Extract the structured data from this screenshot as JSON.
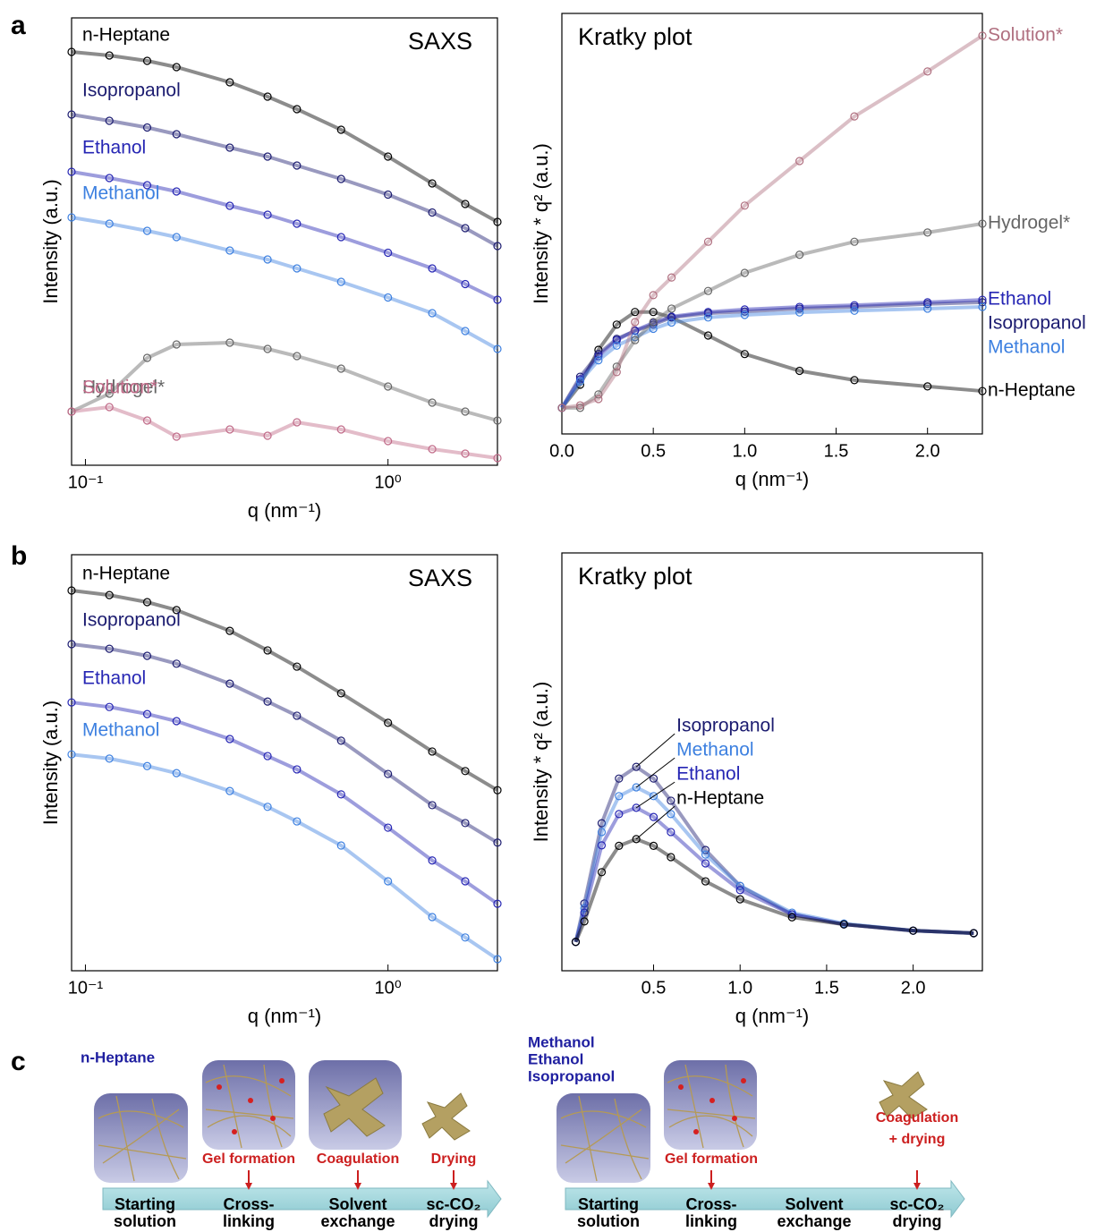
{
  "panels": [
    "a",
    "b",
    "c"
  ],
  "chart_data": [
    {
      "type": "scatter",
      "title": "SAXS",
      "x_label": "q (nm⁻¹)",
      "y_label": "Intensity (a.u.)",
      "xscale": "log",
      "x": [
        0.09,
        0.12,
        0.16,
        0.2,
        0.3,
        0.4,
        0.5,
        0.7,
        1.0,
        1.4,
        1.8,
        2.3
      ],
      "xlim": [
        0.09,
        2.3
      ],
      "xticks": [
        {
          "value": 0.1,
          "label": "10⁻¹"
        },
        {
          "value": 1,
          "label": "10⁰"
        }
      ],
      "ylim": [
        0,
        100
      ],
      "series": [
        {
          "name": "n-Heptane",
          "color": "#000000",
          "values": [
            92.4,
            91.6,
            90.4,
            89,
            85.6,
            82.4,
            79.6,
            75,
            69,
            63,
            58.4,
            54.4
          ]
        },
        {
          "name": "Isopropanol",
          "color": "#1c1c70",
          "values": [
            78.4,
            77,
            75.5,
            74,
            71,
            69,
            67,
            64,
            60.5,
            56.5,
            53,
            49
          ]
        },
        {
          "name": "Ethanol",
          "color": "#2626b4",
          "values": [
            65.6,
            64.2,
            62.6,
            61.2,
            58,
            56,
            54,
            51,
            47.5,
            44,
            40.5,
            37
          ]
        },
        {
          "name": "Methanol",
          "color": "#3d80e0",
          "values": [
            55.4,
            54,
            52.4,
            51,
            48,
            46,
            44,
            41,
            37.5,
            34,
            30,
            26
          ]
        },
        {
          "name": "Hydrogel*",
          "color": "#666666",
          "values": [
            12,
            16,
            24,
            27,
            27.4,
            26,
            24.4,
            21.6,
            17.6,
            14,
            12,
            10
          ]
        },
        {
          "name": "Solution*",
          "color": "#c06a88",
          "values": [
            12,
            13,
            10,
            6.4,
            8,
            6.6,
            9.6,
            8,
            5.4,
            3.6,
            2.6,
            1.6
          ]
        }
      ]
    },
    {
      "type": "scatter",
      "title": "Kratky plot",
      "x_label": "q (nm⁻¹)",
      "y_label": "Intensity * q² (a.u.)",
      "xscale": "linear",
      "x": [
        0,
        0.1,
        0.2,
        0.3,
        0.4,
        0.5,
        0.6,
        0.8,
        1.0,
        1.3,
        1.6,
        2.0,
        2.3
      ],
      "xlim": [
        0,
        2.3
      ],
      "xticks": [
        {
          "value": 0,
          "label": "0.0"
        },
        0.5,
        {
          "value": 1,
          "label": "1.0"
        },
        1.5,
        {
          "value": 2,
          "label": "2.0"
        }
      ],
      "ylim": [
        0,
        100
      ],
      "series": [
        {
          "name": "n-Heptane",
          "color": "#000000",
          "values": [
            6.2,
            11.7,
            20,
            26,
            29,
            29,
            27.7,
            23.4,
            19,
            15,
            12.8,
            11.3,
            10.2
          ]
        },
        {
          "name": "Isopropanol",
          "color": "#1c1c70",
          "values": [
            6.2,
            13.6,
            19,
            22.6,
            24.5,
            26,
            27.7,
            28.7,
            29.1,
            29.8,
            30.2,
            30.9,
            31.3
          ]
        },
        {
          "name": "Ethanol",
          "color": "#2626b4",
          "values": [
            6.2,
            13,
            18.5,
            22.3,
            24.6,
            26.4,
            27.9,
            29,
            29.6,
            30.2,
            30.6,
            31.3,
            31.9
          ]
        },
        {
          "name": "Methanol",
          "color": "#3d80e0",
          "values": [
            6.2,
            12.5,
            17.5,
            21,
            23,
            25,
            26.5,
            27.7,
            28.3,
            28.9,
            29.3,
            29.8,
            30.2
          ]
        },
        {
          "name": "Hydrogel*",
          "color": "#666666",
          "values": [
            6.2,
            6.2,
            9.4,
            16,
            22.3,
            26.6,
            29.8,
            34,
            38.3,
            42.6,
            45.7,
            47.9,
            50
          ]
        },
        {
          "name": "Solution*",
          "color": "#b07080",
          "values": [
            6.2,
            6.8,
            8.3,
            14.7,
            26.6,
            33,
            37.2,
            45.7,
            54.3,
            64.9,
            75.5,
            86.2,
            94.7
          ]
        }
      ]
    },
    {
      "type": "scatter",
      "title": "SAXS",
      "x_label": "q (nm⁻¹)",
      "y_label": "Intensity (a.u.)",
      "xscale": "log",
      "x": [
        0.09,
        0.12,
        0.16,
        0.2,
        0.3,
        0.4,
        0.5,
        0.7,
        1.0,
        1.4,
        1.8,
        2.3
      ],
      "xlim": [
        0.09,
        2.3
      ],
      "xticks": [
        {
          "value": 0.1,
          "label": "10⁻¹"
        },
        {
          "value": 1,
          "label": "10⁰"
        }
      ],
      "ylim": [
        0,
        100
      ],
      "series": [
        {
          "name": "n-Heptane",
          "color": "#000000",
          "values": [
            91.4,
            90.3,
            88.6,
            86.7,
            81.7,
            77,
            73.1,
            66.7,
            59.6,
            52.7,
            48,
            43.4
          ]
        },
        {
          "name": "Isopropanol",
          "color": "#1c1c70",
          "values": [
            78.5,
            77.4,
            75.7,
            73.8,
            69,
            64.7,
            61.3,
            55.3,
            47.3,
            39.8,
            35.5,
            30.8
          ]
        },
        {
          "name": "Ethanol",
          "color": "#2626b4",
          "values": [
            64.5,
            63.4,
            61.7,
            60,
            55.7,
            51.6,
            48.4,
            42.4,
            34.4,
            26.5,
            21.5,
            16.1
          ]
        },
        {
          "name": "Methanol",
          "color": "#3d80e0",
          "values": [
            52,
            51,
            49.2,
            47.5,
            43.2,
            39.4,
            35.9,
            30.1,
            21.5,
            12.9,
            8,
            2.8
          ]
        }
      ]
    },
    {
      "type": "scatter",
      "title": "Kratky plot",
      "x_label": "q (nm⁻¹)",
      "y_label": "Intensity * q² (a.u.)",
      "xscale": "linear",
      "x": [
        0.05,
        0.1,
        0.2,
        0.3,
        0.4,
        0.5,
        0.6,
        0.8,
        1.0,
        1.3,
        1.6,
        2.0,
        2.35
      ],
      "xlim": [
        -0.03,
        2.4
      ],
      "xticks": [
        0.5,
        {
          "value": 1,
          "label": "1.0"
        },
        1.5,
        {
          "value": 2,
          "label": "2.0"
        }
      ],
      "ylim": [
        0,
        100
      ],
      "series": [
        {
          "name": "Isopropanol",
          "color": "#1c1c70",
          "values": [
            6.9,
            16.1,
            35.3,
            46,
            48.8,
            46,
            40.7,
            28.9,
            20.3,
            13.5,
            11.1,
            9.6,
            9
          ]
        },
        {
          "name": "Methanol",
          "color": "#3d80e0",
          "values": [
            6.9,
            15,
            33.2,
            41.8,
            43.9,
            41.8,
            37.5,
            27.8,
            20.3,
            13.9,
            11.3,
            9.6,
            9
          ]
        },
        {
          "name": "Ethanol",
          "color": "#2626b4",
          "values": [
            6.9,
            13.9,
            30,
            37.5,
            39,
            36.8,
            33.2,
            25.7,
            19.3,
            13.5,
            11.1,
            9.6,
            9
          ]
        },
        {
          "name": "n-Heptane",
          "color": "#000000",
          "values": [
            6.9,
            11.8,
            23.6,
            29.9,
            31.5,
            29.9,
            27.2,
            21.4,
            17.1,
            12.8,
            11.1,
            9.6,
            9
          ]
        }
      ]
    }
  ],
  "scheme": {
    "left": {
      "solvents": [
        "n-Heptane"
      ],
      "steps": [
        [
          "Gel formation"
        ],
        [
          "Coagulation"
        ],
        [
          "Drying"
        ]
      ],
      "stages": [
        [
          "Starting",
          "solution"
        ],
        [
          "Cross-",
          "linking"
        ],
        [
          "Solvent",
          "exchange"
        ],
        [
          "sc-CO₂",
          "drying"
        ]
      ]
    },
    "right": {
      "solvents": [
        "Methanol",
        "Ethanol",
        "Isopropanol"
      ],
      "steps": [
        [
          "Gel formation"
        ],
        [
          "Coagulation",
          "+ drying"
        ]
      ],
      "stages": [
        [
          "Starting",
          "solution"
        ],
        [
          "Cross-",
          "linking"
        ],
        [
          "Solvent",
          "exchange"
        ],
        [
          "sc-CO₂",
          "drying"
        ]
      ]
    }
  }
}
